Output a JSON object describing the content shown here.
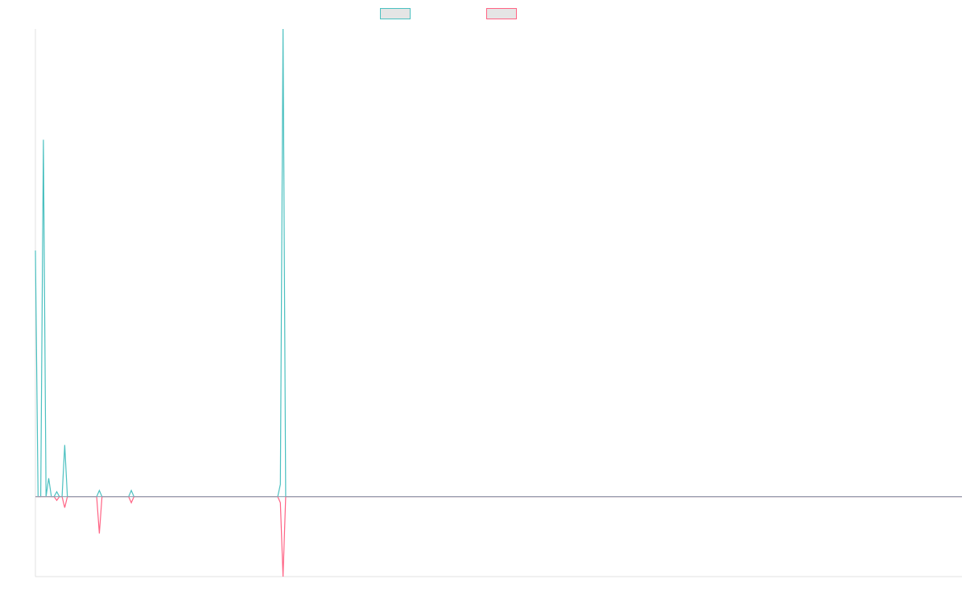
{
  "chart_data": {
    "type": "line",
    "title": "",
    "xlabel": "",
    "ylabel": "",
    "legend": "top-center",
    "grid": false,
    "ylim": [
      -65,
      380
    ],
    "xlim": [
      0,
      348
    ],
    "series": [
      {
        "name": "",
        "color": "#4bc0c0",
        "points": [
          [
            0,
            200
          ],
          [
            1,
            0
          ],
          [
            2,
            0
          ],
          [
            3,
            290
          ],
          [
            4,
            0
          ],
          [
            5,
            15
          ],
          [
            6,
            0
          ],
          [
            7,
            0
          ],
          [
            8,
            4
          ],
          [
            9,
            0
          ],
          [
            10,
            0
          ],
          [
            11,
            42
          ],
          [
            12,
            0
          ],
          [
            13,
            0
          ],
          [
            23,
            0
          ],
          [
            24,
            5
          ],
          [
            25,
            0
          ],
          [
            35,
            0
          ],
          [
            36,
            5
          ],
          [
            37,
            0
          ],
          [
            91,
            0
          ],
          [
            92,
            10
          ],
          [
            93,
            380
          ],
          [
            94,
            0
          ],
          [
            348,
            0
          ]
        ]
      },
      {
        "name": "",
        "color": "#ff6384",
        "points": [
          [
            0,
            0
          ],
          [
            7,
            0
          ],
          [
            8,
            -3
          ],
          [
            9,
            0
          ],
          [
            10,
            0
          ],
          [
            11,
            -9
          ],
          [
            12,
            0
          ],
          [
            23,
            0
          ],
          [
            24,
            -30
          ],
          [
            25,
            0
          ],
          [
            35,
            0
          ],
          [
            36,
            -5
          ],
          [
            37,
            0
          ],
          [
            91,
            0
          ],
          [
            92,
            -5
          ],
          [
            93,
            -65
          ],
          [
            94,
            0
          ],
          [
            348,
            0
          ]
        ]
      }
    ]
  }
}
